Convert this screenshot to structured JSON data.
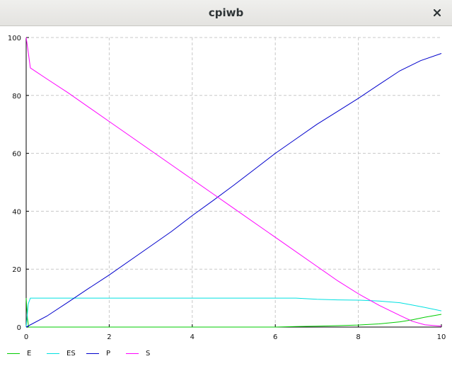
{
  "window": {
    "title": "cpiwb"
  },
  "chart_data": {
    "type": "line",
    "xlim": [
      0,
      10
    ],
    "ylim": [
      0,
      100
    ],
    "x_ticks": [
      "0",
      "2",
      "4",
      "6",
      "8",
      "10"
    ],
    "y_ticks": [
      "0",
      "20",
      "40",
      "60",
      "80",
      "100"
    ],
    "grid": true,
    "legend_position": "bottom-left",
    "series": [
      {
        "name": "E",
        "color": "#00cc00",
        "points": [
          [
            0,
            10
          ],
          [
            0.03,
            3
          ],
          [
            0.06,
            0
          ],
          [
            1,
            0
          ],
          [
            2,
            0
          ],
          [
            3,
            0
          ],
          [
            4,
            0
          ],
          [
            5,
            0
          ],
          [
            6,
            0
          ],
          [
            6.5,
            0.2
          ],
          [
            7,
            0.3
          ],
          [
            7.5,
            0.5
          ],
          [
            8,
            0.7
          ],
          [
            8.5,
            1.1
          ],
          [
            9,
            1.8
          ],
          [
            9.3,
            2.5
          ],
          [
            9.6,
            3.4
          ],
          [
            10,
            4.4
          ]
        ]
      },
      {
        "name": "ES",
        "color": "#00e0e0",
        "points": [
          [
            0,
            0
          ],
          [
            0.05,
            8
          ],
          [
            0.1,
            10
          ],
          [
            1,
            10
          ],
          [
            2,
            10
          ],
          [
            3,
            10
          ],
          [
            4,
            10
          ],
          [
            5,
            10
          ],
          [
            6,
            10
          ],
          [
            6.5,
            10
          ],
          [
            7,
            9.6
          ],
          [
            7.5,
            9.4
          ],
          [
            8,
            9.3
          ],
          [
            8.5,
            9
          ],
          [
            9,
            8.4
          ],
          [
            9.3,
            7.6
          ],
          [
            9.6,
            6.8
          ],
          [
            10,
            5.6
          ]
        ]
      },
      {
        "name": "P",
        "color": "#0000cc",
        "points": [
          [
            0,
            0
          ],
          [
            0.5,
            3.8
          ],
          [
            1,
            8.5
          ],
          [
            1.5,
            13.3
          ],
          [
            2,
            18
          ],
          [
            3,
            28
          ],
          [
            3.5,
            33
          ],
          [
            4,
            38.5
          ],
          [
            4.5,
            43.7
          ],
          [
            5,
            49
          ],
          [
            5.5,
            54.5
          ],
          [
            6,
            60
          ],
          [
            6.5,
            65
          ],
          [
            7,
            70
          ],
          [
            7.5,
            74.5
          ],
          [
            8,
            79
          ],
          [
            8.5,
            83.8
          ],
          [
            9,
            88.5
          ],
          [
            9.5,
            92
          ],
          [
            10,
            94.5
          ]
        ]
      },
      {
        "name": "S",
        "color": "#ff00ff",
        "points": [
          [
            0,
            100
          ],
          [
            0.05,
            95
          ],
          [
            0.1,
            89.5
          ],
          [
            0.5,
            85.7
          ],
          [
            1,
            81
          ],
          [
            2,
            71
          ],
          [
            3,
            61
          ],
          [
            4,
            51
          ],
          [
            4.5,
            46
          ],
          [
            5,
            41
          ],
          [
            6,
            31
          ],
          [
            7,
            21
          ],
          [
            7.5,
            16
          ],
          [
            8,
            11.5
          ],
          [
            8.5,
            7.5
          ],
          [
            9,
            4
          ],
          [
            9.3,
            2
          ],
          [
            9.6,
            0.8
          ],
          [
            10,
            0.3
          ]
        ]
      }
    ]
  }
}
